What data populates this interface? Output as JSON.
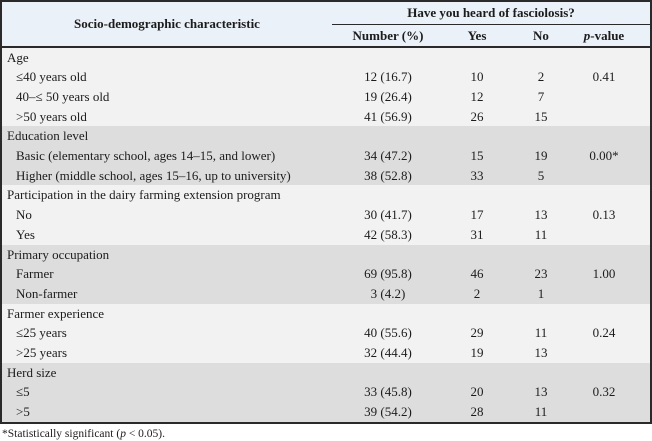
{
  "colors": {
    "header_bg": "#eaf1f8",
    "light_row_bg": "#f2f2f2",
    "dark_row_bg": "#dddddd",
    "border": "#2a2a2a"
  },
  "table": {
    "col1_header": "Socio-demographic characteristic",
    "span_header": "Have you heard of fasciolosis?",
    "sub_headers": [
      "Number (%)",
      "Yes",
      "No"
    ],
    "p_header": {
      "italic": "p",
      "rest": "-value"
    },
    "sections": [
      {
        "label": "Age",
        "shade": "light",
        "rows": [
          {
            "label": "≤40 years old",
            "number": "12 (16.7)",
            "yes": "10",
            "no": "2",
            "p": "0.41"
          },
          {
            "label": "40–≤ 50 years old",
            "number": "19 (26.4)",
            "yes": "12",
            "no": "7",
            "p": ""
          },
          {
            "label": ">50 years old",
            "number": "41 (56.9)",
            "yes": "26",
            "no": "15",
            "p": ""
          }
        ]
      },
      {
        "label": "Education level",
        "shade": "dark",
        "rows": [
          {
            "label": "Basic (elementary school, ages 14–15, and lower)",
            "number": "34 (47.2)",
            "yes": "15",
            "no": "19",
            "p": "0.00*"
          },
          {
            "label": "Higher (middle school, ages 15–16, up to university)",
            "number": "38 (52.8)",
            "yes": "33",
            "no": "5",
            "p": ""
          }
        ]
      },
      {
        "label": "Participation in the dairy farming extension program",
        "shade": "light",
        "rows": [
          {
            "label": "No",
            "number": "30 (41.7)",
            "yes": "17",
            "no": "13",
            "p": "0.13"
          },
          {
            "label": "Yes",
            "number": "42 (58.3)",
            "yes": "31",
            "no": "11",
            "p": ""
          }
        ]
      },
      {
        "label": "Primary occupation",
        "shade": "dark",
        "rows": [
          {
            "label": "Farmer",
            "number": "69 (95.8)",
            "yes": "46",
            "no": "23",
            "p": "1.00"
          },
          {
            "label": "Non-farmer",
            "number": "3 (4.2)",
            "yes": "2",
            "no": "1",
            "p": ""
          }
        ]
      },
      {
        "label": "Farmer experience",
        "shade": "light",
        "rows": [
          {
            "label": "≤25 years",
            "number": "40 (55.6)",
            "yes": "29",
            "no": "11",
            "p": "0.24"
          },
          {
            "label": ">25 years",
            "number": "32 (44.4)",
            "yes": "19",
            "no": "13",
            "p": ""
          }
        ]
      },
      {
        "label": "Herd size",
        "shade": "dark",
        "rows": [
          {
            "label": "≤5",
            "number": "33 (45.8)",
            "yes": "20",
            "no": "13",
            "p": "0.32"
          },
          {
            "label": ">5",
            "number": "39 (54.2)",
            "yes": "28",
            "no": "11",
            "p": ""
          }
        ]
      }
    ],
    "footnote": {
      "pre": "*Statistically significant (",
      "italic": "p",
      "post": " < 0.05)."
    }
  }
}
